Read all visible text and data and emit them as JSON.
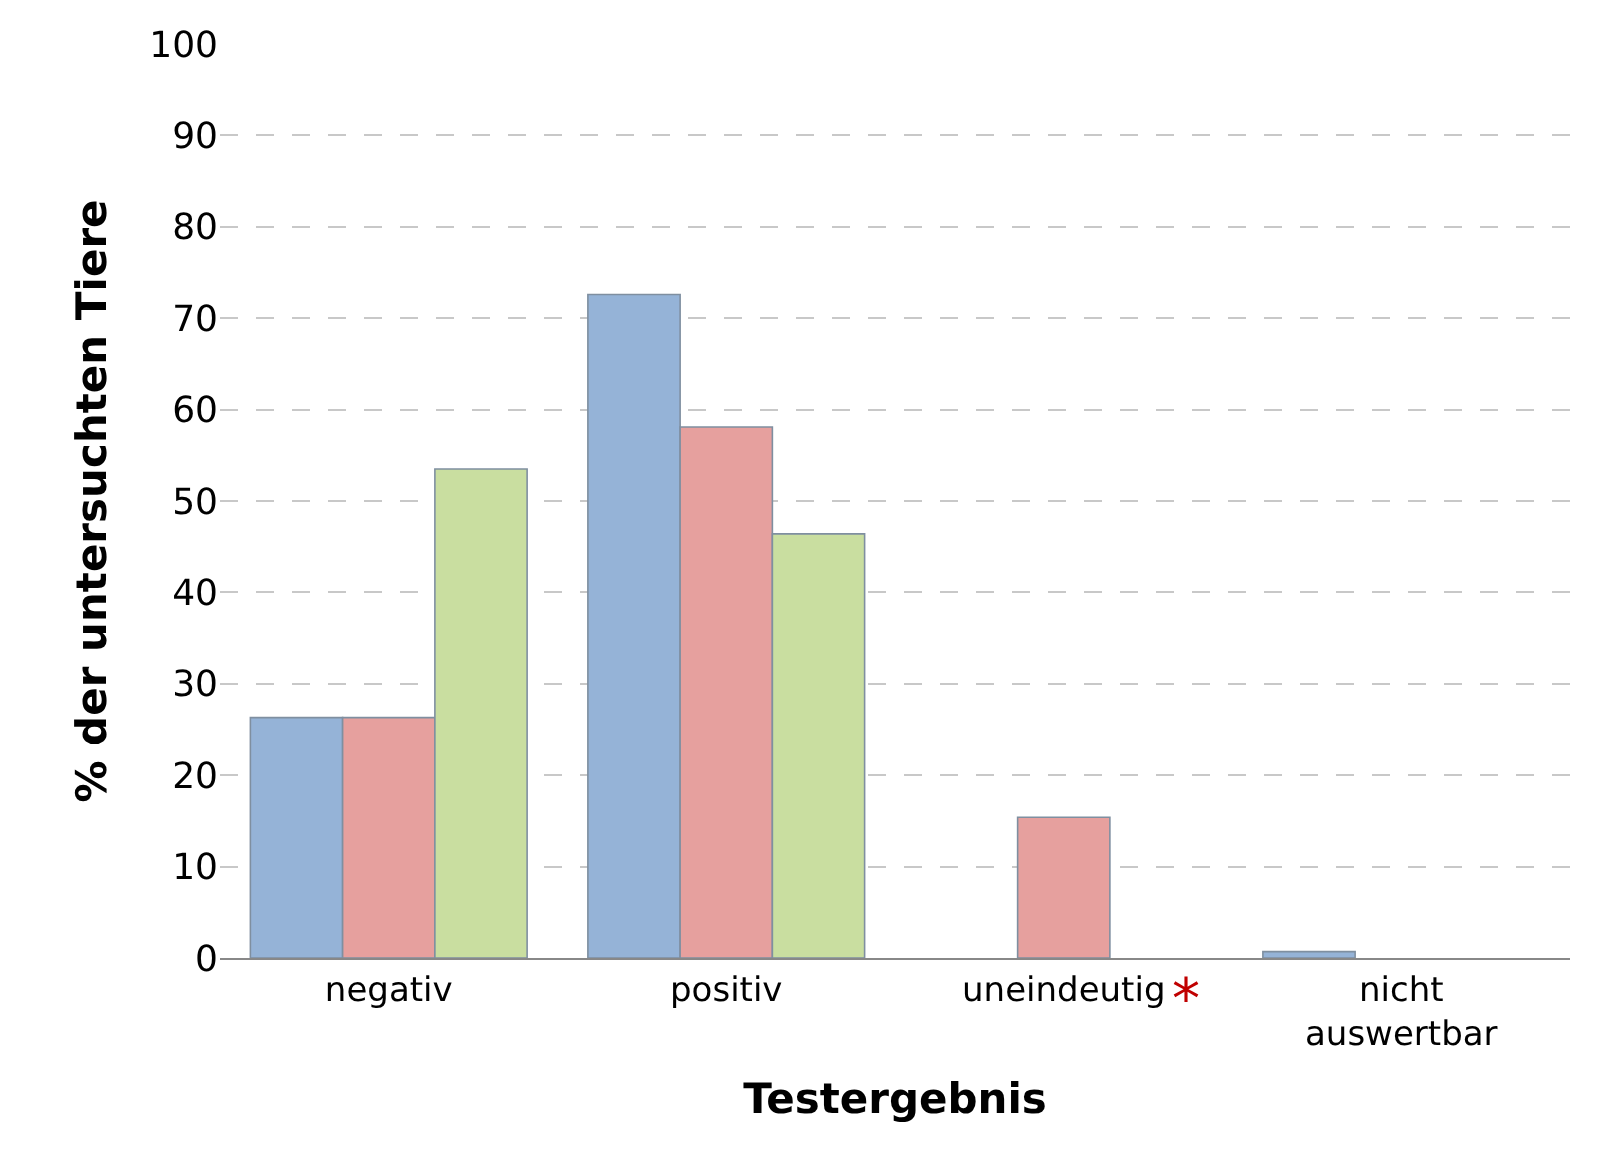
{
  "chart_data": {
    "type": "bar",
    "xlabel": "Testergebnis",
    "ylabel": "% der untersuchten Tiere",
    "categories": [
      "negativ",
      "positiv",
      "uneindeutig",
      "nicht\nauswertbar"
    ],
    "series": [
      {
        "color": "#95b3d7",
        "values": [
          26.3,
          72.6,
          0,
          0.7
        ]
      },
      {
        "color": "#e6a09e",
        "values": [
          26.3,
          58.1,
          15.4,
          0
        ]
      },
      {
        "color": "#c9dea0",
        "values": [
          53.5,
          46.4,
          0,
          0
        ]
      }
    ],
    "ylim": [
      0,
      100
    ],
    "yticks": [
      0,
      10,
      20,
      30,
      40,
      50,
      60,
      70,
      80,
      90,
      100
    ],
    "grid": "y",
    "legend": false,
    "annotations": [
      "*"
    ]
  }
}
